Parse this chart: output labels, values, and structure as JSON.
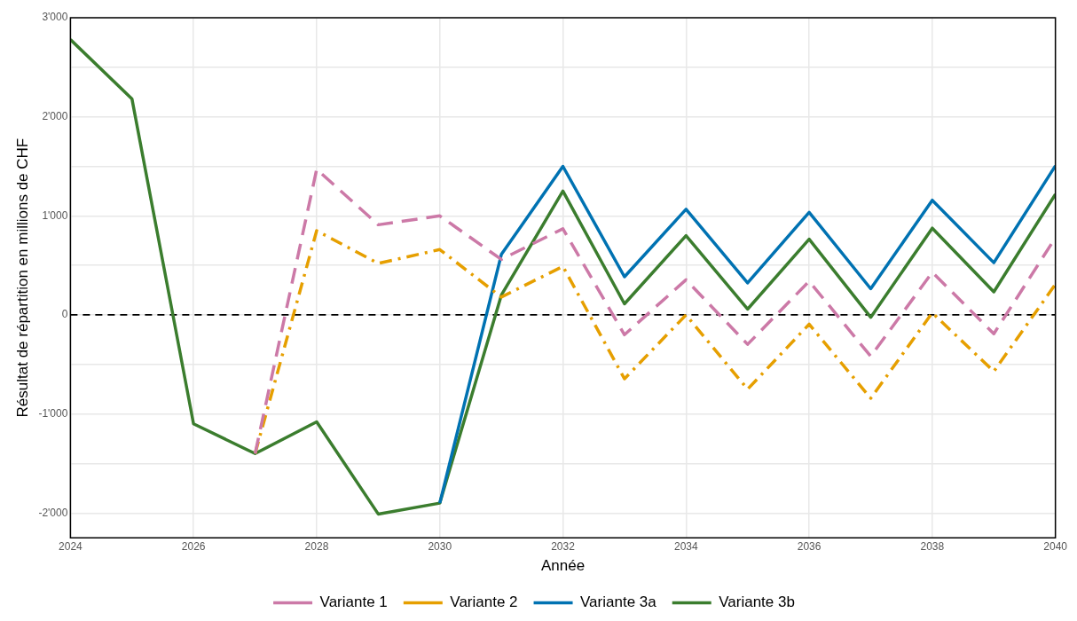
{
  "chart_data": {
    "type": "line",
    "xlabel": "Année",
    "ylabel": "Résultat de répartition en millions de CHF",
    "x": [
      2024,
      2025,
      2026,
      2027,
      2028,
      2029,
      2030,
      2031,
      2032,
      2033,
      2034,
      2035,
      2036,
      2037,
      2038,
      2039,
      2040
    ],
    "series": [
      {
        "name": "Variante 1",
        "color": "#cc79a7",
        "line_style": "dashed",
        "values": [
          null,
          null,
          null,
          -1400,
          1470,
          910,
          1000,
          560,
          870,
          -200,
          355,
          -297,
          340,
          -418,
          430,
          -190,
          779
        ]
      },
      {
        "name": "Variante 2",
        "color": "#e69f00",
        "line_style": "dotted",
        "values": [
          null,
          null,
          null,
          -1400,
          850,
          520,
          660,
          180,
          490,
          -645,
          0,
          -750,
          -94,
          -842,
          21,
          -570,
          309
        ]
      },
      {
        "name": "Variante 3a",
        "color": "#0072b2",
        "line_style": "solid",
        "values": [
          null,
          null,
          null,
          null,
          null,
          null,
          -1900,
          610,
          1500,
          385,
          1067,
          324,
          1036,
          264,
          1158,
          527,
          1506
        ]
      },
      {
        "name": "Variante 3b",
        "color": "#3b7d2e",
        "line_style": "solid",
        "values": [
          2780,
          2180,
          -1100,
          -1400,
          -1080,
          -2010,
          -1900,
          200,
          1250,
          112,
          800,
          58,
          764,
          -24,
          876,
          233,
          1218
        ]
      }
    ],
    "xlim": [
      2024,
      2040
    ],
    "xticks": [
      2024,
      2026,
      2028,
      2030,
      2032,
      2034,
      2036,
      2038,
      2040
    ],
    "ylim": [
      -2250,
      3000
    ],
    "yticks": [
      {
        "value": -2000,
        "label": "-2'000"
      },
      {
        "value": -1500,
        "label": null
      },
      {
        "value": -1000,
        "label": "-1'000"
      },
      {
        "value": -500,
        "label": null
      },
      {
        "value": 0,
        "label": "0"
      },
      {
        "value": 500,
        "label": null
      },
      {
        "value": 1000,
        "label": "1'000"
      },
      {
        "value": 1500,
        "label": null
      },
      {
        "value": 2000,
        "label": "2'000"
      },
      {
        "value": 2500,
        "label": null
      },
      {
        "value": 3000,
        "label": "3'000"
      }
    ],
    "ref_lines": [
      {
        "axis": "y",
        "value": 0,
        "color": "#000000",
        "line_style": "dashed"
      }
    ],
    "grid": true,
    "legend": "bottom",
    "marker": "none"
  }
}
